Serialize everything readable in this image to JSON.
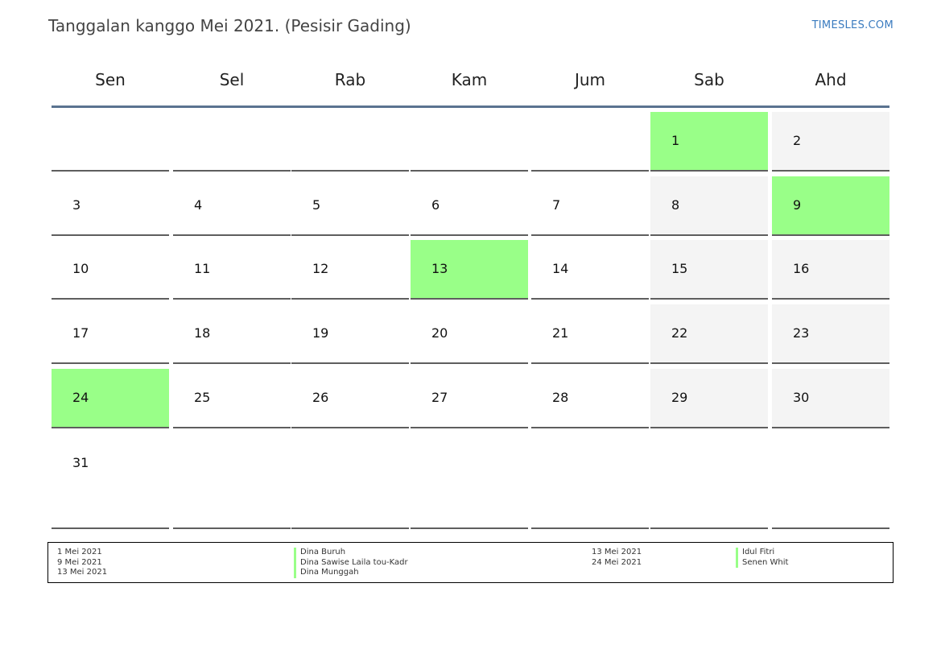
{
  "header": {
    "title": "Tanggalan kanggo Mei 2021. (Pesisir Gading)",
    "brand": "TIMESLES.COM"
  },
  "calendar": {
    "days_of_week": [
      "Sen",
      "Sel",
      "Rab",
      "Kam",
      "Jum",
      "Sab",
      "Ahd"
    ],
    "weeks": [
      [
        "",
        "",
        "",
        "",
        "",
        "1",
        "2"
      ],
      [
        "3",
        "4",
        "5",
        "6",
        "7",
        "8",
        "9"
      ],
      [
        "10",
        "11",
        "12",
        "13",
        "14",
        "15",
        "16"
      ],
      [
        "17",
        "18",
        "19",
        "20",
        "21",
        "22",
        "23"
      ],
      [
        "24",
        "25",
        "26",
        "27",
        "28",
        "29",
        "30"
      ],
      [
        "31",
        "",
        "",
        "",
        "",
        "",
        ""
      ]
    ],
    "holiday_days": [
      "1",
      "9",
      "13",
      "24"
    ],
    "colors": {
      "holiday": "#99ff88",
      "weekend": "#f4f4f4",
      "header_rule": "#5a7390"
    }
  },
  "legend": {
    "left": [
      {
        "date": "1 Mei 2021",
        "name": "Dina Buruh"
      },
      {
        "date": "9 Mei 2021",
        "name": "Dina Sawise Laila tou-Kadr"
      },
      {
        "date": "13 Mei 2021",
        "name": "Dina Munggah"
      }
    ],
    "right": [
      {
        "date": "13 Mei 2021",
        "name": "Idul Fitri"
      },
      {
        "date": "24 Mei 2021",
        "name": "Senen Whit"
      }
    ]
  }
}
